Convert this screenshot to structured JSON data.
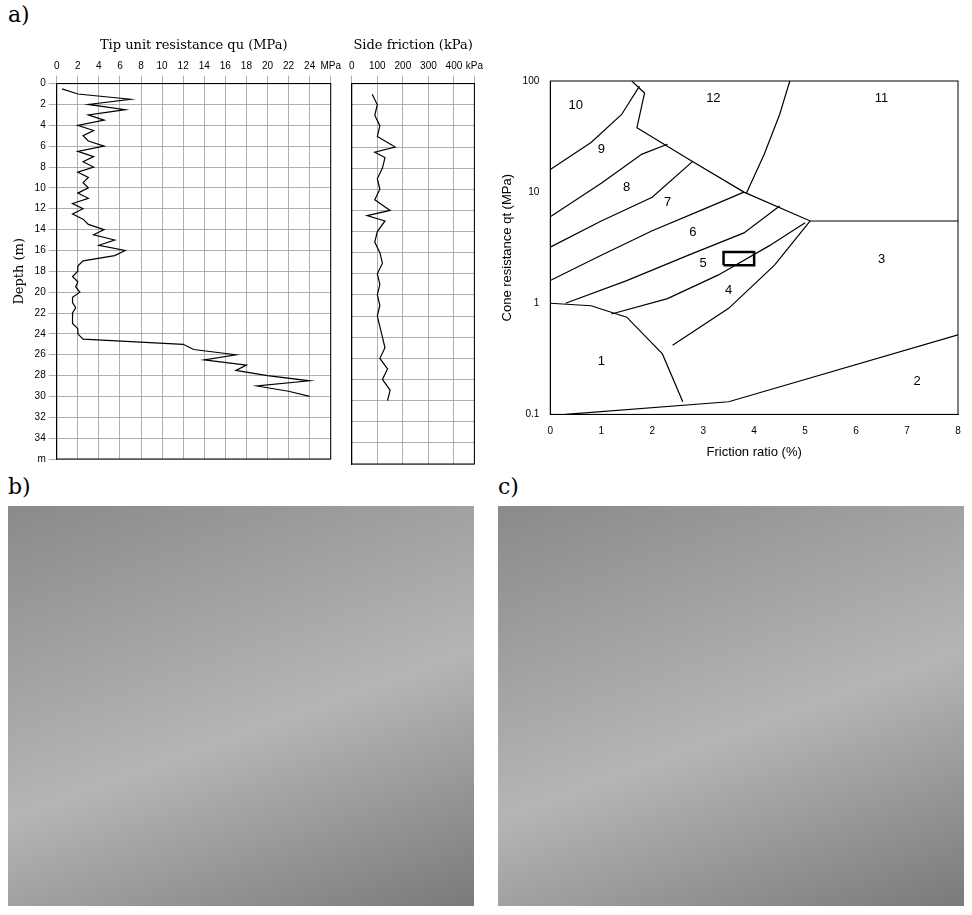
{
  "panels": [
    "a)",
    "b)",
    "c)"
  ],
  "chart_data": [
    {
      "type": "line",
      "x_label": "Tip unit resistance qu (MPa)",
      "y_label": "Depth (m)",
      "x": [
        0.5,
        2,
        7,
        3,
        6.5,
        3,
        4.5,
        2,
        3.5,
        2.5,
        3,
        4.5,
        2,
        3.5,
        2.5,
        3.5,
        2,
        3,
        2.5,
        3,
        2,
        3,
        1.5,
        2.5,
        1.5,
        2.5,
        3,
        4.5,
        3.5,
        5.5,
        4,
        6.5,
        5.5,
        2.5,
        2,
        2,
        1.5,
        2,
        1.8,
        2.2,
        1.5,
        1.5,
        1.8,
        1.5,
        1.5,
        1.5,
        2,
        2,
        2.5,
        12,
        13,
        17,
        14,
        18,
        17,
        20,
        24,
        19,
        22,
        24
      ],
      "y": [
        0.5,
        1,
        1.5,
        2,
        2.5,
        3,
        3.5,
        4,
        4.5,
        5,
        5.5,
        6,
        6.5,
        7,
        7.5,
        8,
        8.5,
        9,
        9.5,
        10,
        10.5,
        11,
        11.5,
        12,
        12.5,
        13,
        13.5,
        14,
        14.5,
        15,
        15.5,
        16,
        16.5,
        17,
        17.5,
        18,
        18.5,
        19,
        19.5,
        20,
        20.5,
        21,
        21.5,
        22,
        22.5,
        23,
        23.5,
        24,
        24.5,
        25,
        25.5,
        26,
        26.5,
        27,
        27.5,
        28,
        28.5,
        29,
        29.5,
        30
      ],
      "color": "#000000",
      "xlim": [
        0,
        26
      ],
      "xticks": [
        0,
        2,
        4,
        6,
        8,
        10,
        12,
        14,
        16,
        18,
        20,
        22,
        24,
        {
          "value": 26,
          "label": "MPa"
        }
      ],
      "ylim": [
        36,
        0
      ],
      "yticks": [
        0,
        2,
        4,
        6,
        8,
        10,
        12,
        14,
        16,
        18,
        20,
        22,
        24,
        26,
        28,
        30,
        32,
        34,
        {
          "value": 36,
          "label": "m"
        }
      ],
      "grid": true
    },
    {
      "type": "line",
      "x_label": "Side friction (kPa)",
      "x": [
        80,
        100,
        90,
        110,
        100,
        170,
        90,
        130,
        120,
        100,
        110,
        90,
        150,
        60,
        130,
        100,
        90,
        110,
        120,
        100,
        110,
        100,
        110,
        100,
        110,
        120,
        130,
        110,
        140,
        120,
        150,
        140
      ],
      "y": [
        1,
        2,
        3,
        4,
        5,
        6,
        6.5,
        7,
        8,
        9,
        10,
        11,
        12,
        12.5,
        13,
        14,
        15,
        16,
        17,
        18,
        19,
        20,
        21,
        22,
        23,
        24,
        25,
        26,
        27,
        28,
        29,
        30
      ],
      "color": "#000000",
      "xlim": [
        0,
        480
      ],
      "xticks": [
        0,
        100,
        200,
        300,
        400,
        {
          "value": 480,
          "label": "kPa"
        }
      ],
      "ylim": [
        36,
        0
      ],
      "yticks": [
        0,
        2,
        4,
        6,
        8,
        10,
        12,
        14,
        16,
        18,
        20,
        22,
        24,
        26,
        28,
        30,
        32,
        34,
        36
      ],
      "grid": true,
      "tick_labels": "x"
    },
    {
      "type": "line",
      "x_label": "Friction ratio (%)",
      "y_label": "Cone resistance qt (MPa)",
      "log": "y",
      "color": "#000000",
      "series": [
        {
          "x": [
            0.3,
            3.5,
            8
          ],
          "y": [
            0.1,
            0.13,
            0.52
          ]
        },
        {
          "x": [
            0,
            0.8,
            1.5,
            2.2,
            2.6
          ],
          "y": [
            1,
            0.95,
            0.75,
            0.35,
            0.13
          ]
        },
        {
          "x": [
            2.4,
            3.5,
            4.4,
            5.1
          ],
          "y": [
            0.42,
            0.9,
            2.2,
            5.5
          ]
        },
        {
          "x": [
            1.2,
            2.3,
            3.3,
            4.3,
            5.0
          ],
          "y": [
            0.8,
            1.1,
            1.8,
            3.3,
            5.3
          ]
        },
        {
          "x": [
            0.3,
            1.5,
            2.7,
            3.8,
            4.5
          ],
          "y": [
            1,
            1.6,
            2.7,
            4.3,
            7.5
          ]
        },
        {
          "x": [
            0,
            1,
            2,
            3,
            3.8
          ],
          "y": [
            1.6,
            2.7,
            4.5,
            7,
            10
          ]
        },
        {
          "x": [
            0,
            1,
            2,
            2.8
          ],
          "y": [
            3.2,
            5.5,
            9,
            19
          ]
        },
        {
          "x": [
            0,
            1,
            1.8,
            2.3
          ],
          "y": [
            6,
            12,
            22,
            27
          ]
        },
        {
          "x": [
            0,
            0.8,
            1.4,
            1.75
          ],
          "y": [
            16,
            28,
            50,
            90
          ]
        },
        {
          "x": [
            1.6,
            1.85,
            1.7,
            2.7,
            3.8,
            5.1,
            8
          ],
          "y": [
            100,
            78,
            38,
            20,
            10,
            5.5,
            5.5
          ]
        },
        {
          "x": [
            4.7,
            4.5,
            4.2,
            3.85
          ],
          "y": [
            100,
            50,
            22,
            9.8
          ]
        }
      ],
      "box": {
        "x": [
          3.4,
          4.0
        ],
        "y": [
          2.2,
          2.9
        ]
      },
      "annotations": [
        {
          "text": "1",
          "x": 1.0,
          "y": 0.3
        },
        {
          "text": "2",
          "x": 7.2,
          "y": 0.2
        },
        {
          "text": "3",
          "x": 6.5,
          "y": 2.5
        },
        {
          "text": "4",
          "x": 3.5,
          "y": 1.3
        },
        {
          "text": "5",
          "x": 3.0,
          "y": 2.3
        },
        {
          "text": "6",
          "x": 2.8,
          "y": 4.3
        },
        {
          "text": "7",
          "x": 2.3,
          "y": 8
        },
        {
          "text": "8",
          "x": 1.5,
          "y": 11
        },
        {
          "text": "9",
          "x": 1.0,
          "y": 24
        },
        {
          "text": "10",
          "x": 0.5,
          "y": 60
        },
        {
          "text": "12",
          "x": 3.2,
          "y": 70
        },
        {
          "text": "11",
          "x": 6.5,
          "y": 70
        }
      ],
      "xlim": [
        0,
        8
      ],
      "xticks": [
        0,
        1,
        2,
        3,
        4,
        5,
        6,
        7,
        8
      ],
      "ylim": [
        0.1,
        100
      ],
      "yticks": [
        0.1,
        1,
        10,
        100
      ],
      "grid": false
    }
  ]
}
